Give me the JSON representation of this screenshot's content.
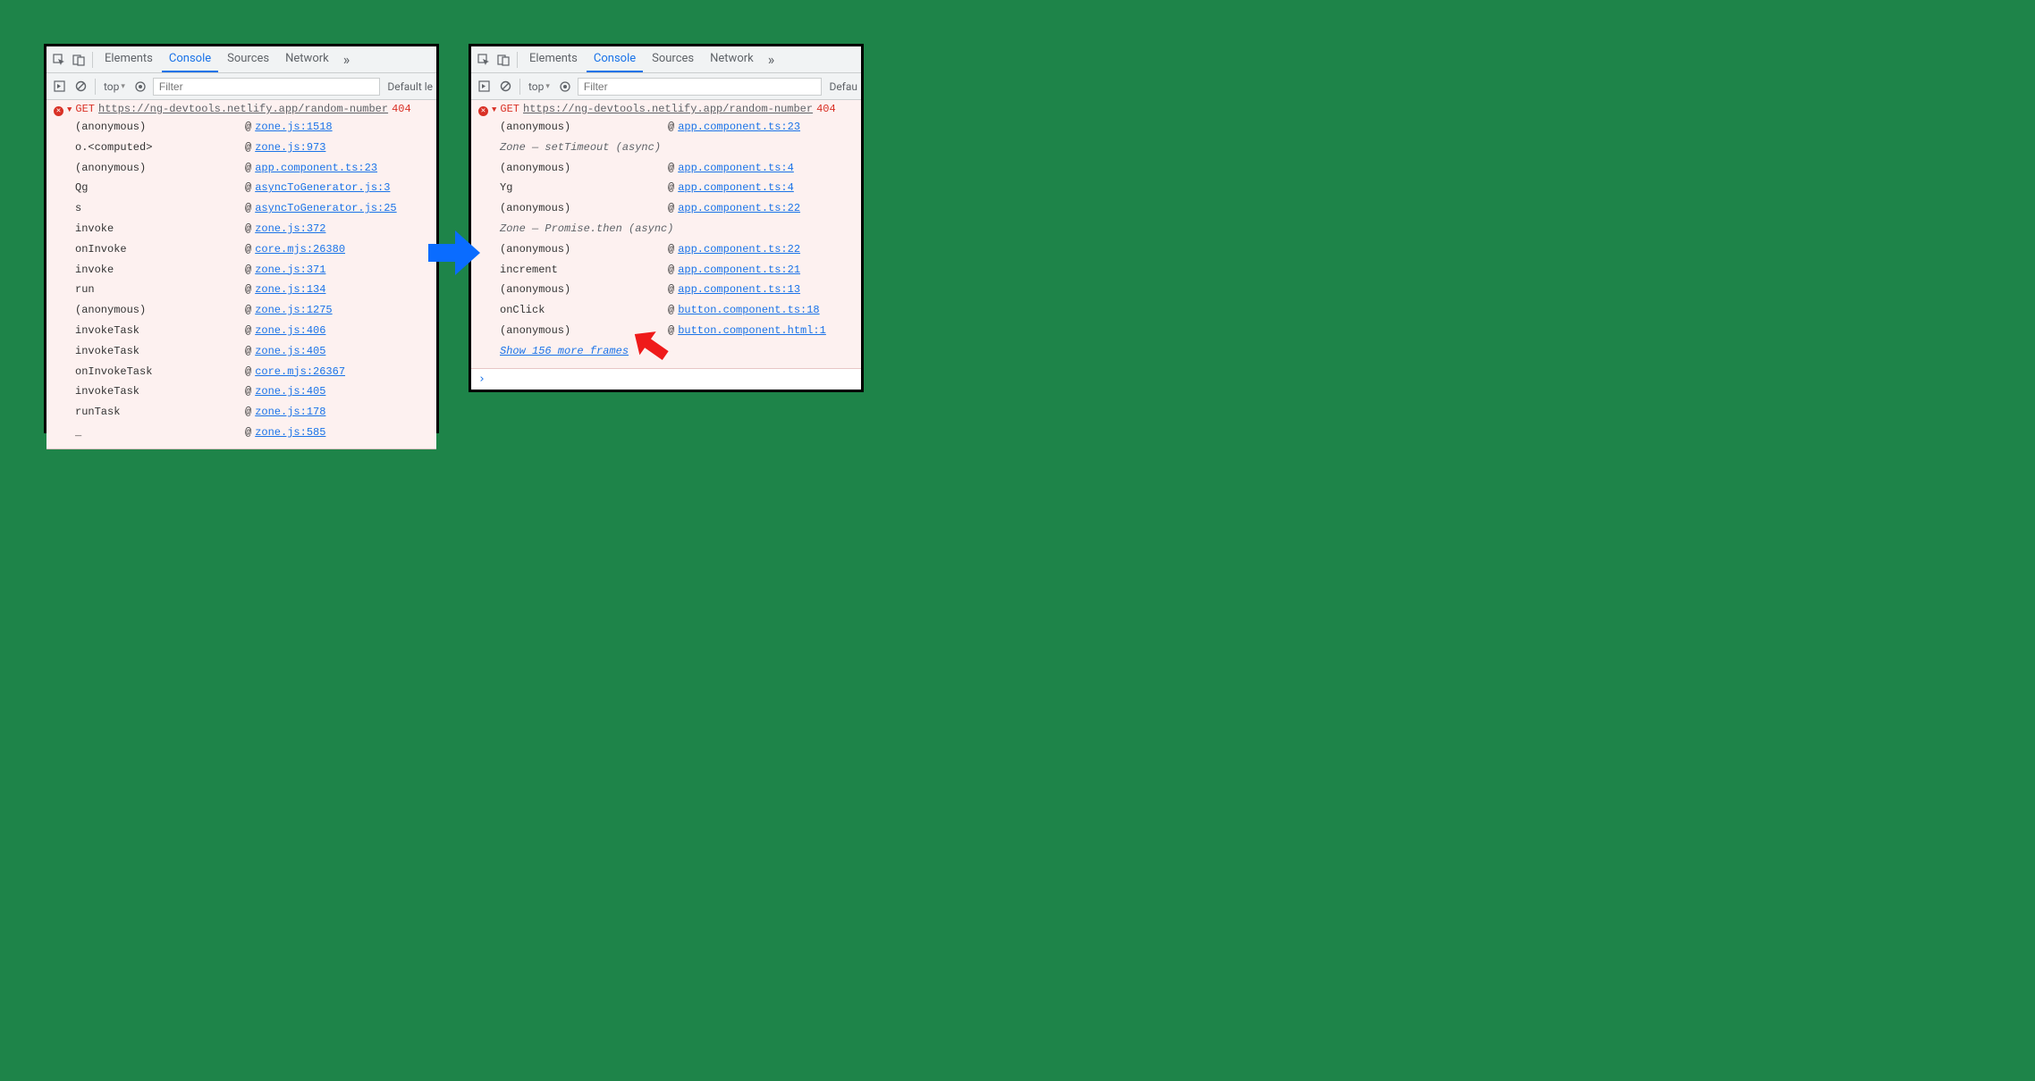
{
  "colors": {
    "page_bg": "#1e8449",
    "panel_bg": "#ffffff",
    "panel_border": "#000000",
    "toolbar_bg": "#f1f3f4",
    "toolbar_border": "#cacdce",
    "tab_selected": "#1a73e8",
    "console_error_bg": "#fdf1f0",
    "error_red": "#d93025",
    "link_blue": "#1a73e8",
    "muted": "#5f6368",
    "blue_arrow": "#0a6cff",
    "red_arrow": "#ef1a1a"
  },
  "tabs": {
    "elements": "Elements",
    "console": "Console",
    "sources": "Sources",
    "network": "Network",
    "more_glyph": "»"
  },
  "filter": {
    "context": "top",
    "context_dropdown_glyph": "▾",
    "placeholder": "Filter",
    "levels_left": "Default le",
    "levels_right": "Defau"
  },
  "error": {
    "method": "GET",
    "url": "https://ng-devtools.netlify.app/random-number",
    "status": "404"
  },
  "left_trace": [
    {
      "fn": "(anonymous)",
      "src": "zone.js:1518"
    },
    {
      "fn": "o.<computed>",
      "src": "zone.js:973"
    },
    {
      "fn": "(anonymous)",
      "src": "app.component.ts:23"
    },
    {
      "fn": "Qg",
      "src": "asyncToGenerator.js:3"
    },
    {
      "fn": "s",
      "src": "asyncToGenerator.js:25"
    },
    {
      "fn": "invoke",
      "src": "zone.js:372"
    },
    {
      "fn": "onInvoke",
      "src": "core.mjs:26380"
    },
    {
      "fn": "invoke",
      "src": "zone.js:371"
    },
    {
      "fn": "run",
      "src": "zone.js:134"
    },
    {
      "fn": "(anonymous)",
      "src": "zone.js:1275"
    },
    {
      "fn": "invokeTask",
      "src": "zone.js:406"
    },
    {
      "fn": "invokeTask",
      "src": "zone.js:405"
    },
    {
      "fn": "onInvokeTask",
      "src": "core.mjs:26367"
    },
    {
      "fn": "invokeTask",
      "src": "zone.js:405"
    },
    {
      "fn": "runTask",
      "src": "zone.js:178"
    },
    {
      "fn": "_",
      "src": "zone.js:585"
    }
  ],
  "right_trace": [
    {
      "type": "frame",
      "fn": "(anonymous)",
      "src": "app.component.ts:23"
    },
    {
      "type": "async",
      "label": "Zone — setTimeout (async)"
    },
    {
      "type": "frame",
      "fn": "(anonymous)",
      "src": "app.component.ts:4"
    },
    {
      "type": "frame",
      "fn": "Yg",
      "src": "app.component.ts:4"
    },
    {
      "type": "frame",
      "fn": "(anonymous)",
      "src": "app.component.ts:22"
    },
    {
      "type": "async",
      "label": "Zone — Promise.then (async)"
    },
    {
      "type": "frame",
      "fn": "(anonymous)",
      "src": "app.component.ts:22"
    },
    {
      "type": "frame",
      "fn": "increment",
      "src": "app.component.ts:21"
    },
    {
      "type": "frame",
      "fn": "(anonymous)",
      "src": "app.component.ts:13"
    },
    {
      "type": "frame",
      "fn": "onClick",
      "src": "button.component.ts:18"
    },
    {
      "type": "frame",
      "fn": "(anonymous)",
      "src": "button.component.html:1"
    }
  ],
  "show_more": "Show 156 more frames",
  "prompt_glyph": "›",
  "at_symbol": "@"
}
